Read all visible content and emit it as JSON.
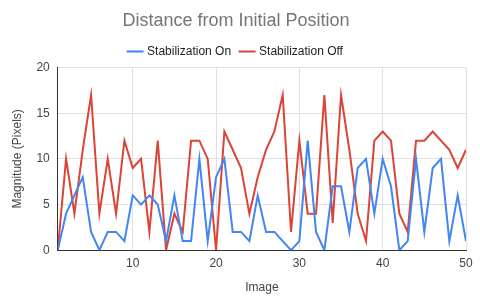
{
  "chart_data": {
    "type": "line",
    "title": "Distance from Initial Position",
    "x_label": "Image",
    "y_label": "Magnitude (Pixels)",
    "x": [
      1,
      2,
      3,
      4,
      5,
      6,
      7,
      8,
      9,
      10,
      11,
      12,
      13,
      14,
      15,
      16,
      17,
      18,
      19,
      20,
      21,
      22,
      23,
      24,
      25,
      26,
      27,
      28,
      29,
      30,
      31,
      32,
      33,
      34,
      35,
      36,
      37,
      38,
      39,
      40,
      41,
      42,
      43,
      44,
      45,
      46,
      47,
      48,
      49,
      50
    ],
    "series": [
      {
        "name": "Stabilization On",
        "color": "#4285f4",
        "values": [
          0,
          4,
          6,
          8,
          2,
          0,
          2,
          2,
          1,
          6,
          5,
          6,
          5,
          1,
          6,
          1,
          1,
          10,
          1,
          8,
          10,
          2,
          2,
          1,
          6,
          2,
          2,
          1,
          0,
          1,
          12,
          2,
          0,
          7,
          7,
          2,
          9,
          10,
          4,
          10,
          7,
          0,
          1,
          10,
          2,
          9,
          10,
          1,
          6,
          1
        ]
      },
      {
        "name": "Stabilization Off",
        "color": "#db4437",
        "values": [
          0,
          10,
          4,
          11,
          17,
          4,
          10,
          4,
          12,
          9,
          10,
          2,
          12,
          0,
          4,
          2,
          12,
          12,
          10,
          0,
          13,
          11,
          9,
          4,
          8,
          11,
          13,
          17,
          2,
          12,
          4,
          4,
          17,
          3,
          17,
          11,
          4,
          1,
          12,
          13,
          12,
          4,
          2,
          12,
          12,
          13,
          12,
          11,
          9,
          11
        ]
      }
    ],
    "xlim": [
      1,
      50
    ],
    "xticks": [
      10,
      20,
      30,
      40,
      50
    ],
    "ylim": [
      0,
      20
    ],
    "yticks": [
      0,
      5,
      10,
      15,
      20
    ],
    "grid": true,
    "legend": "top"
  }
}
